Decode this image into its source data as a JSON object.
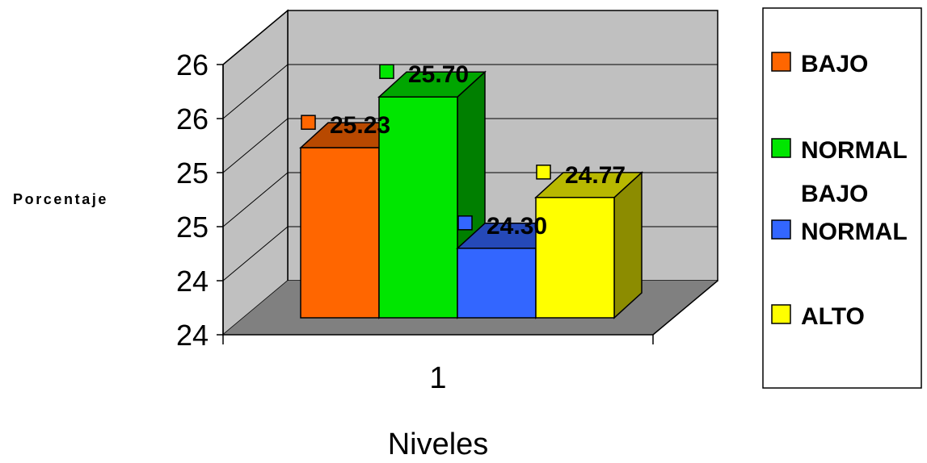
{
  "chart_data": {
    "type": "bar",
    "render_style": "3d-column",
    "categories": [
      "1"
    ],
    "series": [
      {
        "name": "BAJO",
        "values": [
          25.23
        ],
        "label": "25.23",
        "color": "#FF6600"
      },
      {
        "name": "NORMAL BAJO",
        "values": [
          25.7
        ],
        "label": "25.70",
        "color": "#00E600"
      },
      {
        "name": "NORMAL",
        "values": [
          24.3
        ],
        "label": "24.30",
        "color": "#3366FF"
      },
      {
        "name": "ALTO",
        "values": [
          24.77
        ],
        "label": "24.77",
        "color": "#FFFF00"
      }
    ],
    "legend_lines": [
      [
        "BAJO"
      ],
      [
        "NORMAL",
        "BAJO"
      ],
      [
        "NORMAL"
      ],
      [
        "ALTO"
      ]
    ],
    "title": "",
    "xlabel": "Niveles",
    "ylabel": "Porcentaje",
    "ylim": [
      23.5,
      26.0
    ],
    "y_ticks": [
      {
        "value": 23.5,
        "label": "24"
      },
      {
        "value": 24.0,
        "label": "24"
      },
      {
        "value": 24.5,
        "label": "25"
      },
      {
        "value": 25.0,
        "label": "25"
      },
      {
        "value": 25.5,
        "label": "26"
      },
      {
        "value": 26.0,
        "label": "26"
      }
    ],
    "grid": true,
    "legend_position": "right",
    "colors": {
      "wall": "#C0C0C0",
      "floor": "#808080",
      "gridline": "#000000"
    }
  }
}
